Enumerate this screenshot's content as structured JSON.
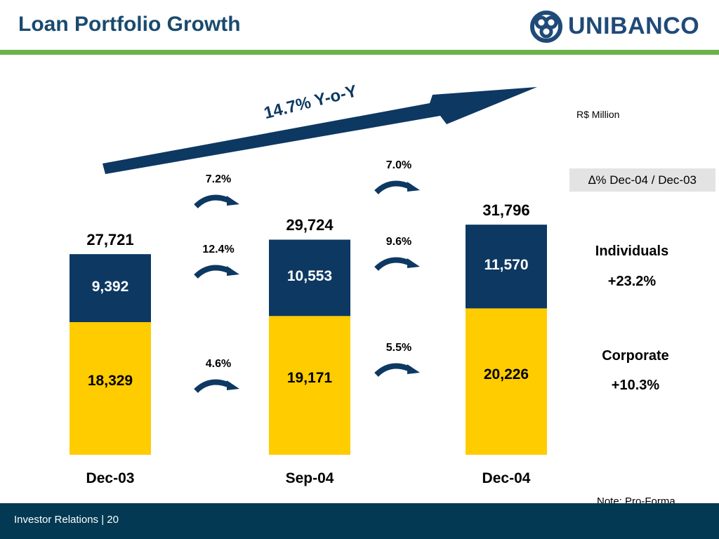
{
  "slide": {
    "title": "Loan Portfolio Growth",
    "logo_text": "UNIBANCO",
    "unit": "R$ Million",
    "delta_label": "∆% Dec-04 / Dec-03",
    "note": "Note: Pro-Forma.",
    "footer": "Investor Relations | 20",
    "trend_label": "14.7% Y-o-Y"
  },
  "legend": {
    "individuals": {
      "name": "Individuals",
      "change": "+23.2%"
    },
    "corporate": {
      "name": "Corporate",
      "change": "+10.3%"
    }
  },
  "colors": {
    "individuals": "#0d3862",
    "corporate": "#ffcc00",
    "trend_arrow": "#0d3862",
    "green_rule": "#6ab24a",
    "footer": "#033953"
  },
  "chart_data": {
    "type": "bar",
    "stacked": true,
    "categories": [
      "Dec-03",
      "Sep-04",
      "Dec-04"
    ],
    "series": [
      {
        "name": "Corporate",
        "values": [
          18329,
          19171,
          20226
        ]
      },
      {
        "name": "Individuals",
        "values": [
          9392,
          10553,
          11570
        ]
      }
    ],
    "totals": [
      27721,
      29724,
      31796
    ],
    "labels": {
      "corporate": [
        "18,329",
        "19,171",
        "20,226"
      ],
      "individuals": [
        "9,392",
        "10,553",
        "11,570"
      ],
      "totals": [
        "27,721",
        "29,724",
        "31,796"
      ]
    },
    "growth": [
      {
        "total": "7.2%",
        "individuals": "12.4%",
        "corporate": "4.6%"
      },
      {
        "total": "7.0%",
        "individuals": "9.6%",
        "corporate": "5.5%"
      }
    ],
    "ylim": [
      0,
      32000
    ]
  }
}
